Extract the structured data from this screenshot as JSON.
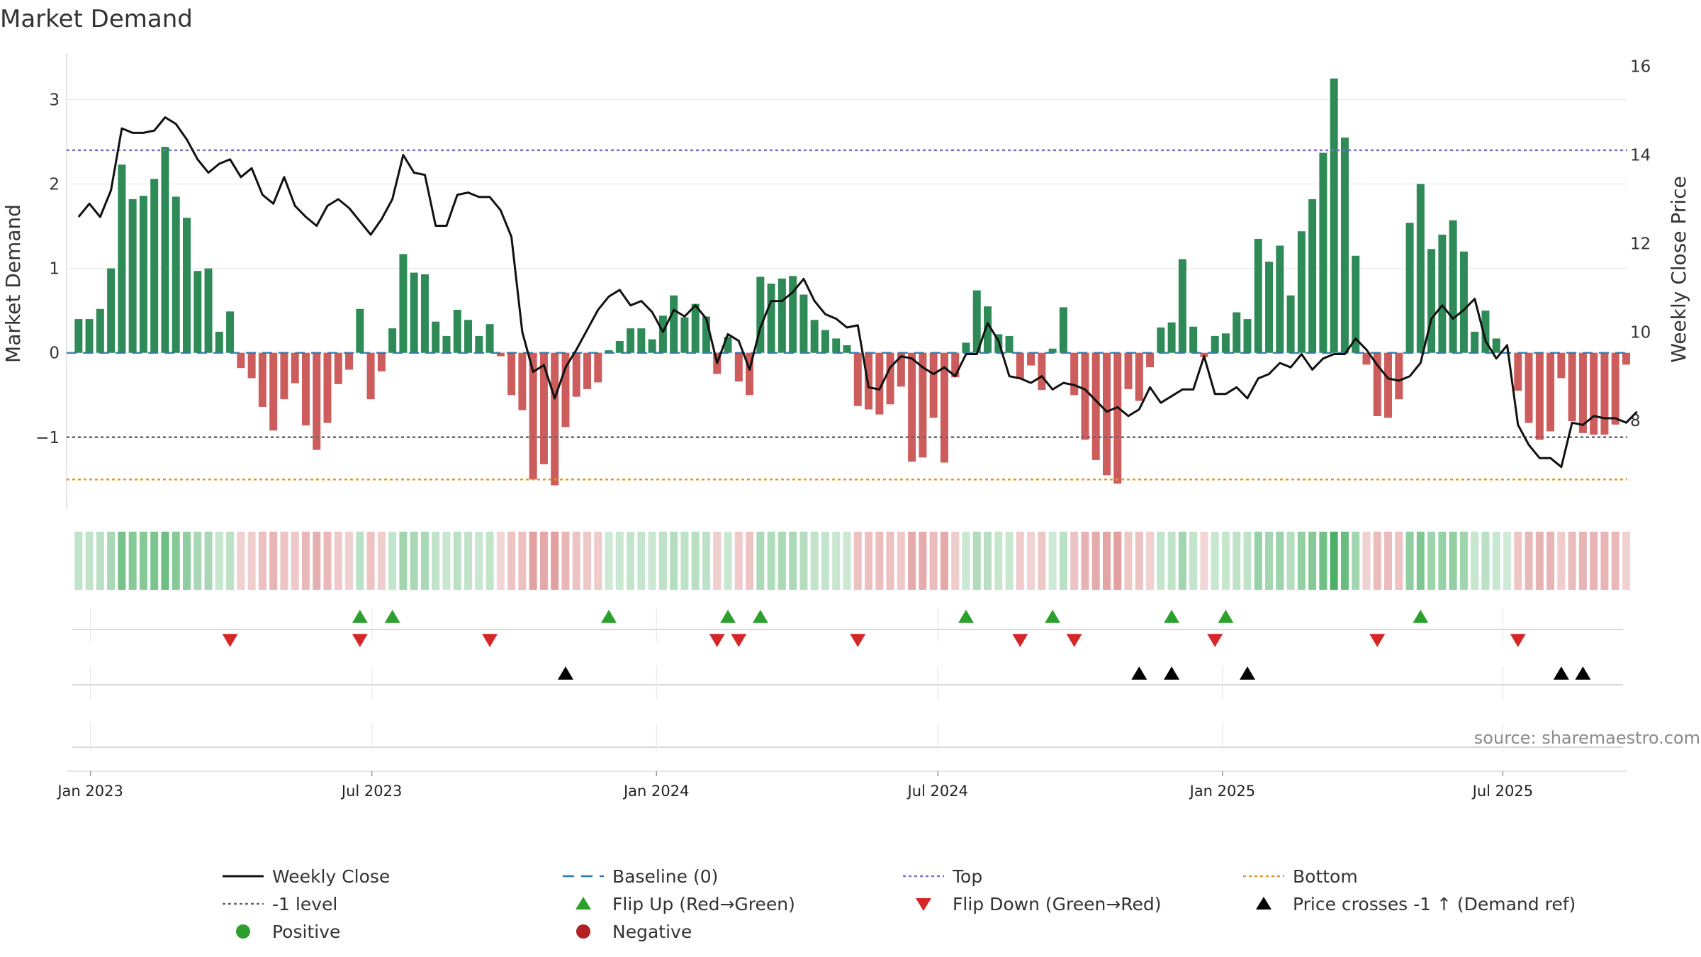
{
  "chart_data": {
    "type": "bar",
    "title": "Market Demand",
    "ylabel": "Market Demand",
    "y2label": "Weekly Close Price",
    "source": "source: sharemaestro.com",
    "ylim": [
      -1.85,
      3.55
    ],
    "y2lim": [
      6.0,
      16.3
    ],
    "yticks": [
      -1,
      0,
      1,
      2,
      3
    ],
    "ytick_labels": [
      "−1",
      "0",
      "1",
      "2",
      "3"
    ],
    "y2ticks": [
      8,
      10,
      12,
      14,
      16
    ],
    "y2tick_labels": [
      "8",
      "10",
      "12",
      "14",
      "16"
    ],
    "xlim": [
      -1.1,
      143.1
    ],
    "xticks": [
      {
        "x": 1.1,
        "label": "Jan 2023"
      },
      {
        "x": 27.1,
        "label": "Jul 2023"
      },
      {
        "x": 53.4,
        "label": "Jan 2024"
      },
      {
        "x": 79.4,
        "label": "Jul 2024"
      },
      {
        "x": 105.7,
        "label": "Jan 2025"
      },
      {
        "x": 131.6,
        "label": "Jul 2025"
      }
    ],
    "levels": {
      "top": 2.4,
      "minus_one": -1.0,
      "bottom": -1.5,
      "baseline": 0
    },
    "series": [
      {
        "name": "Market Demand",
        "axis": "left",
        "values": [
          0.4,
          0.4,
          0.52,
          1.0,
          2.23,
          1.82,
          1.86,
          2.06,
          2.44,
          1.85,
          1.6,
          0.97,
          1.0,
          0.25,
          0.49,
          -0.18,
          -0.3,
          -0.64,
          -0.92,
          -0.55,
          -0.36,
          -0.86,
          -1.15,
          -0.83,
          -0.37,
          -0.2,
          0.52,
          -0.55,
          -0.22,
          0.29,
          1.17,
          0.95,
          0.93,
          0.37,
          0.2,
          0.51,
          0.39,
          0.2,
          0.34,
          -0.04,
          -0.5,
          -0.68,
          -1.5,
          -1.32,
          -1.57,
          -0.88,
          -0.52,
          -0.43,
          -0.35,
          0.03,
          0.14,
          0.29,
          0.29,
          0.16,
          0.44,
          0.68,
          0.42,
          0.58,
          0.43,
          -0.25,
          0.19,
          -0.34,
          -0.5,
          0.9,
          0.82,
          0.88,
          0.91,
          0.69,
          0.39,
          0.27,
          0.17,
          0.09,
          -0.63,
          -0.67,
          -0.73,
          -0.61,
          -0.4,
          -1.29,
          -1.24,
          -0.77,
          -1.3,
          -0.29,
          0.12,
          0.74,
          0.55,
          0.22,
          0.2,
          -0.31,
          -0.15,
          -0.44,
          0.05,
          0.54,
          -0.5,
          -1.03,
          -1.27,
          -1.45,
          -1.55,
          -0.43,
          -0.57,
          -0.17,
          0.3,
          0.36,
          1.11,
          0.31,
          -0.05,
          0.2,
          0.23,
          0.48,
          0.4,
          1.35,
          1.08,
          1.27,
          0.68,
          1.44,
          1.82,
          2.37,
          3.25,
          2.55,
          1.15,
          -0.14,
          -0.75,
          -0.77,
          -0.55,
          1.54,
          2.0,
          1.23,
          1.4,
          1.57,
          1.2,
          0.25,
          0.5,
          0.17,
          0,
          -0.45,
          -0.83,
          -1.03,
          -0.93,
          -0.3,
          -0.81,
          -0.95,
          -0.97,
          -0.97,
          -0.85,
          -0.14
        ]
      },
      {
        "name": "Weekly Close",
        "axis": "right",
        "values": [
          12.6,
          12.9,
          12.6,
          13.2,
          14.6,
          14.5,
          14.5,
          14.55,
          14.85,
          14.7,
          14.35,
          13.9,
          13.6,
          13.8,
          13.9,
          13.5,
          13.7,
          13.1,
          12.9,
          13.5,
          12.85,
          12.6,
          12.4,
          12.85,
          13.0,
          12.8,
          12.5,
          12.2,
          12.55,
          13.0,
          14.0,
          13.6,
          13.55,
          12.4,
          12.4,
          13.1,
          13.15,
          13.05,
          13.05,
          12.75,
          12.15,
          10.0,
          9.1,
          9.25,
          8.5,
          9.2,
          9.6,
          10.05,
          10.5,
          10.8,
          10.95,
          10.6,
          10.7,
          10.45,
          10.0,
          10.5,
          10.35,
          10.6,
          10.3,
          9.3,
          9.95,
          9.8,
          9.15,
          10.1,
          10.7,
          10.7,
          10.9,
          11.2,
          10.7,
          10.4,
          10.3,
          10.1,
          10.15,
          8.75,
          8.7,
          9.2,
          9.45,
          9.4,
          9.2,
          9.05,
          9.2,
          9.0,
          9.5,
          9.5,
          10.2,
          9.8,
          9.0,
          8.95,
          8.85,
          9.0,
          8.7,
          8.85,
          8.8,
          8.7,
          8.45,
          8.2,
          8.3,
          8.1,
          8.25,
          8.75,
          8.4,
          8.55,
          8.7,
          8.7,
          9.45,
          8.6,
          8.6,
          8.75,
          8.5,
          8.95,
          9.05,
          9.3,
          9.2,
          9.5,
          9.15,
          9.4,
          9.5,
          9.5,
          9.85,
          9.6,
          9.25,
          8.95,
          8.9,
          9.0,
          9.3,
          10.3,
          10.6,
          10.3,
          10.5,
          10.75,
          9.8,
          9.4,
          9.7,
          7.9,
          7.45,
          7.15,
          7.15,
          6.95,
          7.95,
          7.9,
          8.1,
          8.05,
          8.05,
          7.95,
          8.2
        ]
      }
    ],
    "flip_up": [
      26,
      29,
      49,
      60,
      63,
      82,
      90,
      101,
      106,
      124
    ],
    "flip_down": [
      14,
      26,
      38,
      59,
      61,
      72,
      87,
      92,
      105,
      120,
      133
    ],
    "price_cross": [
      45,
      98,
      101,
      108,
      137,
      139
    ],
    "legend_position": "bottom",
    "legend": [
      {
        "label": "Weekly Close",
        "kind": "line-solid",
        "color": "#111111"
      },
      {
        "label": "Baseline (0)",
        "kind": "line-dash",
        "color": "#2a7ab0"
      },
      {
        "label": "Top",
        "kind": "line-dot",
        "color": "#7a6fd0"
      },
      {
        "label": "Bottom",
        "kind": "line-dot",
        "color": "#e09a2a"
      },
      {
        "label": "-1 level",
        "kind": "line-dot",
        "color": "#666677"
      },
      {
        "label": "Flip Up (Red→Green)",
        "kind": "tri-up",
        "color": "#2ca02c"
      },
      {
        "label": "Flip Down (Green→Red)",
        "kind": "tri-down",
        "color": "#d62728"
      },
      {
        "label": "Price crosses -1 ↑ (Demand ref)",
        "kind": "tri-up",
        "color": "#000000"
      },
      {
        "label": "Positive",
        "kind": "dot",
        "color": "#2ca02c"
      },
      {
        "label": "Negative",
        "kind": "dot",
        "color": "#b22222"
      }
    ],
    "colors": {
      "positive": "#2e8b57",
      "negative": "#cd5c5c",
      "price": "#111111",
      "grid": "#e6e6e6"
    }
  }
}
